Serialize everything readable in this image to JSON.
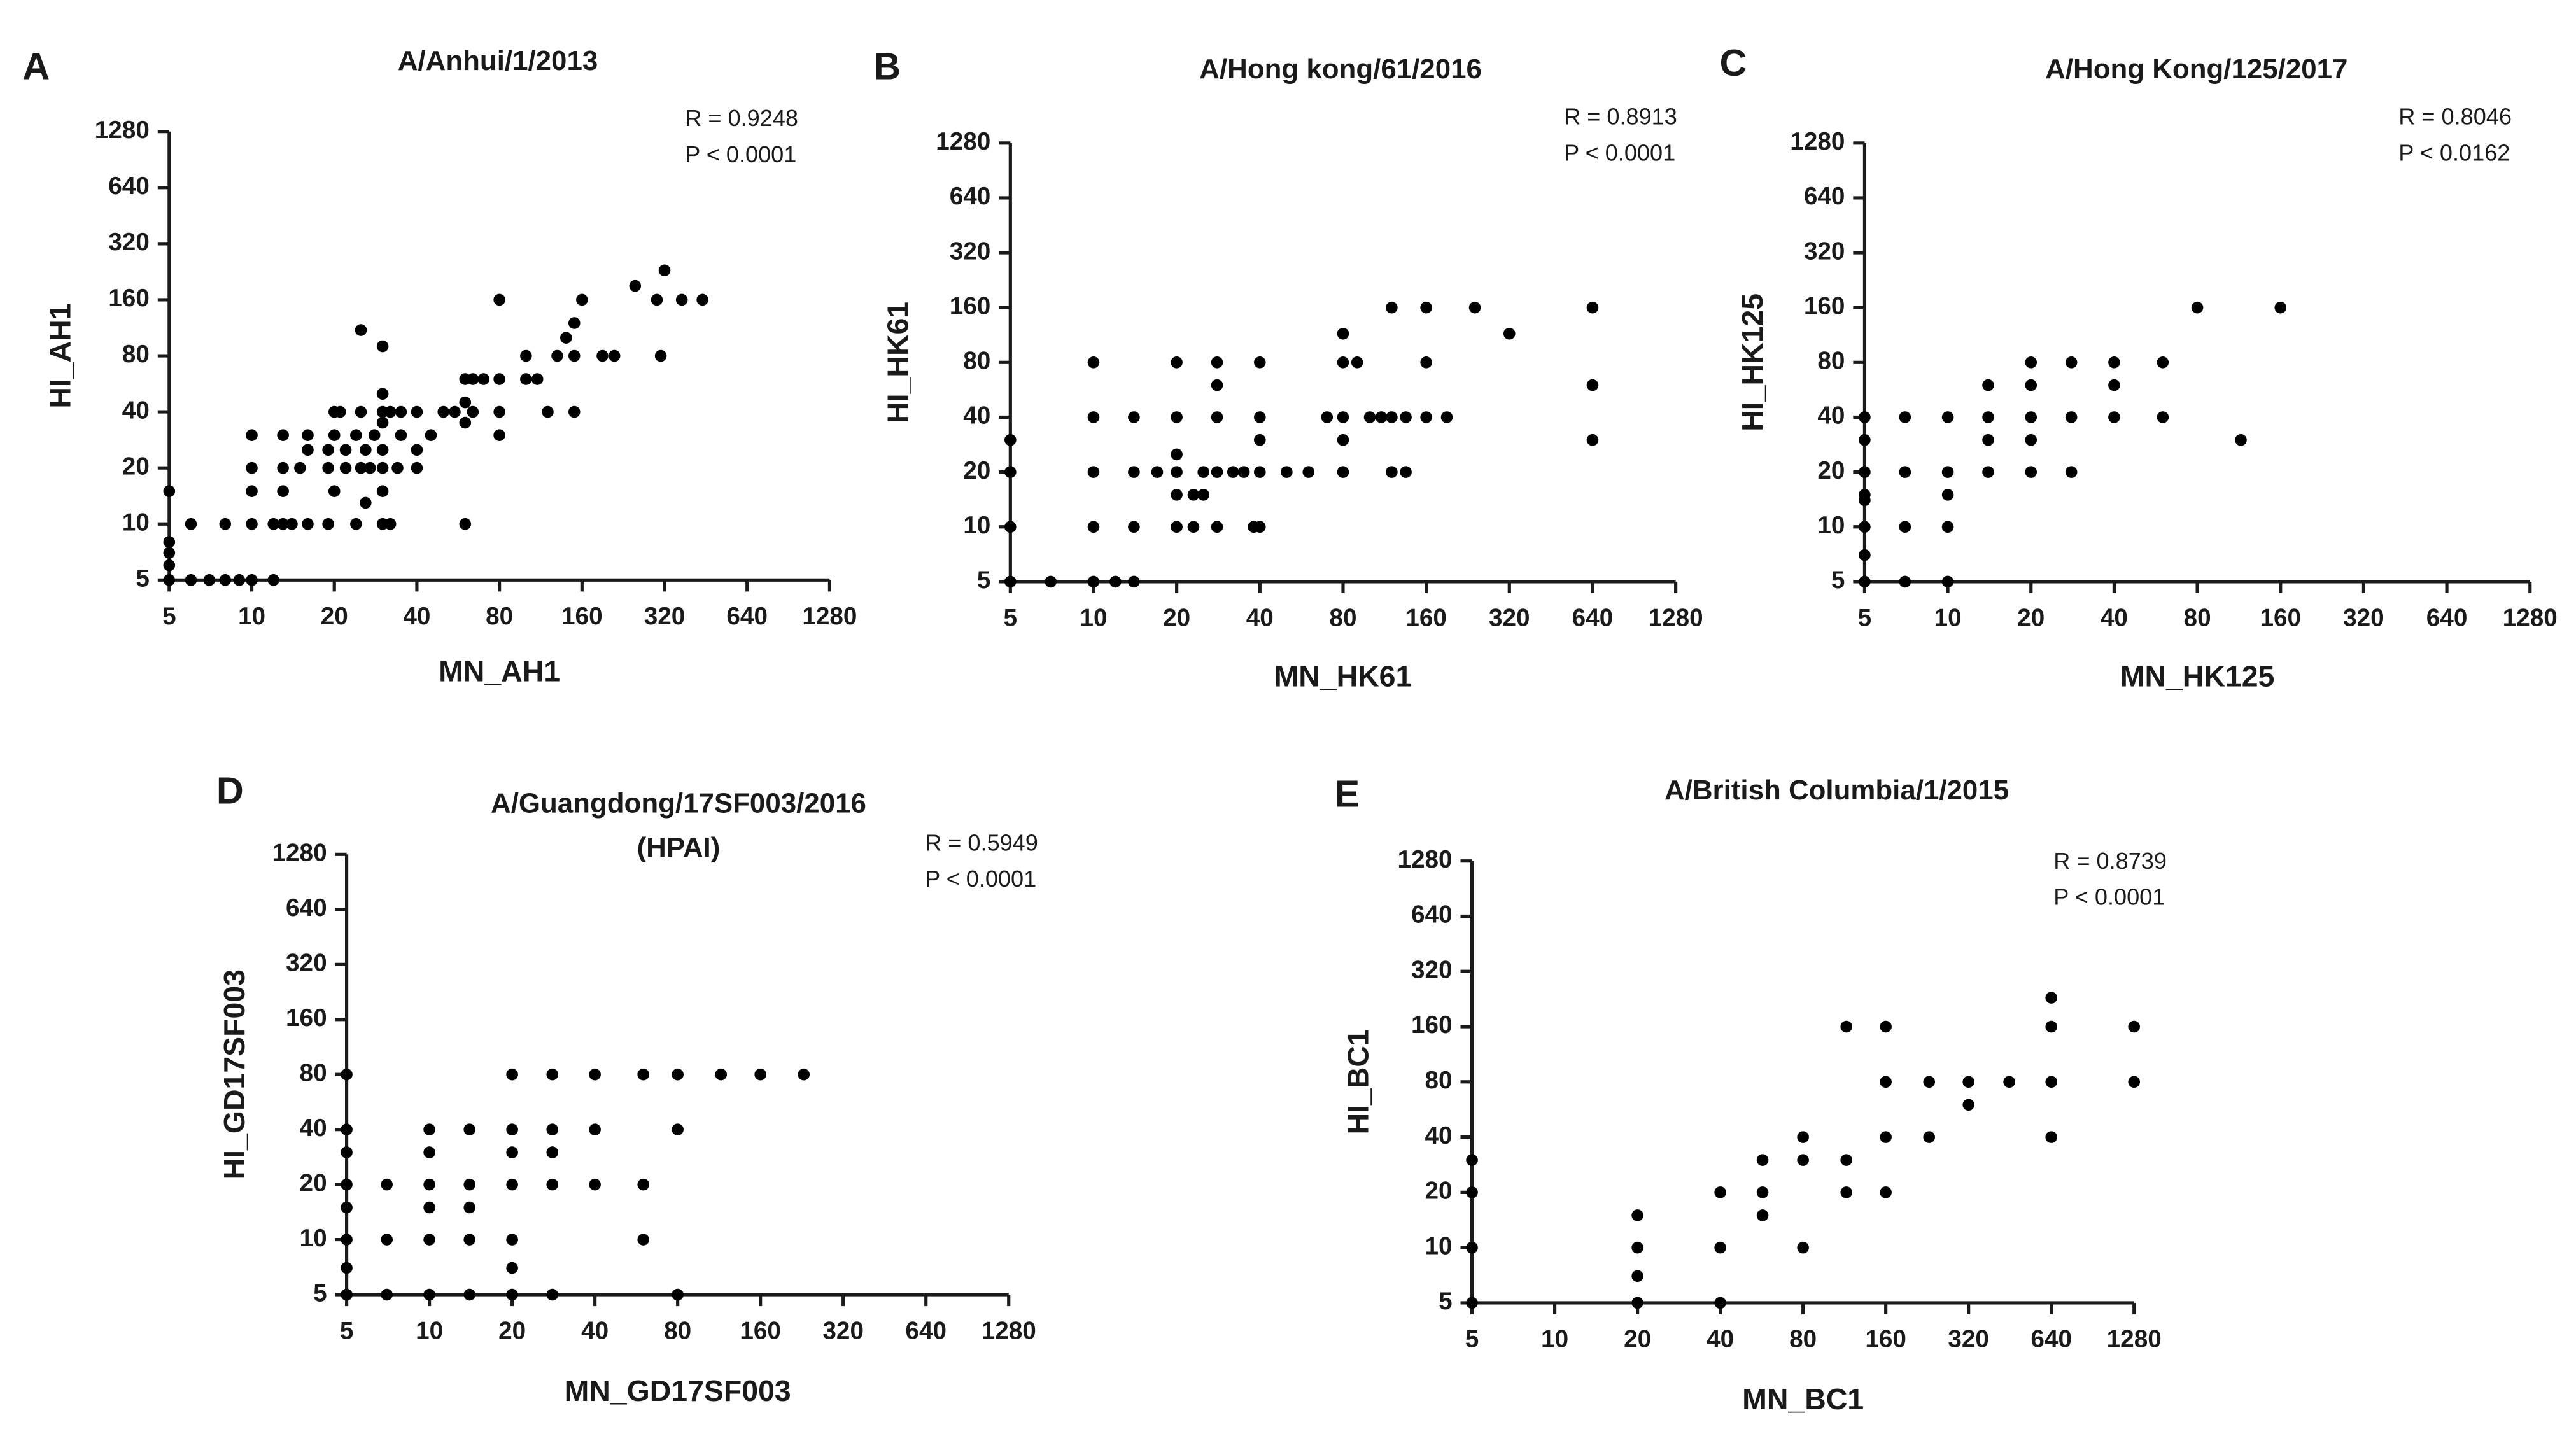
{
  "chart_data": [
    {
      "type": "scatter",
      "panel_label": "A",
      "title": "A/Anhui/1/2013",
      "x_label": "MN_AH1",
      "y_label": "HI_AH1",
      "annotations": [
        "R = 0.9248",
        "P < 0.0001"
      ],
      "color": "#000000",
      "xscale": "log",
      "yscale": "log",
      "xlim": [
        5,
        1280
      ],
      "ylim": [
        5,
        1280
      ],
      "xticks": [
        5,
        10,
        20,
        40,
        80,
        160,
        320,
        640,
        1280
      ],
      "yticks": [
        5,
        10,
        20,
        40,
        80,
        160,
        320,
        640,
        1280
      ],
      "x": [
        5,
        5,
        5,
        5,
        5,
        6,
        6,
        7,
        8,
        9,
        10,
        12,
        8,
        10,
        10,
        10,
        10,
        12,
        13,
        14,
        13,
        13,
        13,
        16,
        15,
        16,
        16,
        19,
        19,
        20,
        20,
        20,
        19,
        21,
        22,
        22,
        24,
        24,
        25,
        25,
        25,
        26,
        26,
        27,
        28,
        30,
        30,
        30,
        30,
        30,
        30,
        30,
        30,
        32,
        32,
        34,
        35,
        35,
        40,
        40,
        40,
        45,
        50,
        55,
        60,
        60,
        60,
        60,
        64,
        64,
        70,
        80,
        80,
        80,
        80,
        100,
        100,
        110,
        120,
        130,
        140,
        150,
        150,
        150,
        160,
        190,
        210,
        250,
        310,
        300,
        320,
        370,
        440
      ],
      "y": [
        5,
        6,
        7,
        8,
        15,
        5,
        10,
        5,
        5,
        5,
        5,
        5,
        10,
        10,
        15,
        20,
        30,
        10,
        10,
        10,
        15,
        20,
        30,
        10,
        20,
        25,
        30,
        10,
        20,
        15,
        30,
        40,
        25,
        40,
        25,
        20,
        30,
        10,
        20,
        40,
        110,
        13,
        25,
        20,
        30,
        10,
        15,
        20,
        25,
        35,
        40,
        50,
        90,
        10,
        40,
        20,
        30,
        40,
        20,
        40,
        25,
        30,
        40,
        40,
        35,
        10,
        45,
        60,
        40,
        60,
        60,
        160,
        30,
        40,
        60,
        60,
        80,
        60,
        40,
        80,
        100,
        40,
        80,
        120,
        160,
        80,
        80,
        190,
        80,
        160,
        230,
        160,
        160
      ]
    },
    {
      "type": "scatter",
      "panel_label": "B",
      "title": "A/Hong kong/61/2016",
      "x_label": "MN_HK61",
      "y_label": "HI_HK61",
      "annotations": [
        "R = 0.8913",
        "P < 0.0001"
      ],
      "color": "#000000",
      "xscale": "log",
      "yscale": "log",
      "xlim": [
        5,
        1280
      ],
      "ylim": [
        5,
        1280
      ],
      "xticks": [
        5,
        10,
        20,
        40,
        80,
        160,
        320,
        640,
        1280
      ],
      "yticks": [
        5,
        10,
        20,
        40,
        80,
        160,
        320,
        640,
        1280
      ],
      "x": [
        5,
        5,
        5,
        5,
        7,
        10,
        10,
        10,
        10,
        10,
        12,
        14,
        14,
        14,
        14,
        17,
        20,
        20,
        20,
        20,
        20,
        20,
        23,
        23,
        25,
        25,
        28,
        28,
        28,
        28,
        28,
        32,
        35,
        38,
        40,
        40,
        40,
        40,
        40,
        50,
        60,
        70,
        80,
        80,
        80,
        80,
        80,
        90,
        100,
        110,
        120,
        120,
        120,
        135,
        135,
        160,
        160,
        160,
        190,
        240,
        320,
        640,
        640,
        640
      ],
      "y": [
        5,
        10,
        20,
        30,
        5,
        5,
        10,
        20,
        40,
        80,
        5,
        5,
        10,
        20,
        40,
        20,
        10,
        15,
        20,
        25,
        40,
        80,
        10,
        15,
        15,
        20,
        10,
        20,
        40,
        60,
        80,
        20,
        20,
        10,
        10,
        20,
        30,
        40,
        80,
        20,
        20,
        40,
        20,
        30,
        40,
        80,
        115,
        80,
        40,
        40,
        40,
        20,
        160,
        20,
        40,
        40,
        80,
        160,
        40,
        160,
        115,
        30,
        60,
        160
      ]
    },
    {
      "type": "scatter",
      "panel_label": "C",
      "title": "A/Hong Kong/125/2017",
      "x_label": "MN_HK125",
      "y_label": "HI_HK125",
      "annotations": [
        "R = 0.8046",
        "P < 0.0162"
      ],
      "color": "#000000",
      "xscale": "log",
      "yscale": "log",
      "xlim": [
        5,
        1280
      ],
      "ylim": [
        5,
        1280
      ],
      "xticks": [
        5,
        10,
        20,
        40,
        80,
        160,
        320,
        640,
        1280
      ],
      "yticks": [
        5,
        10,
        20,
        40,
        80,
        160,
        320,
        640,
        1280
      ],
      "x": [
        5,
        5,
        5,
        5,
        5,
        5,
        5,
        5,
        7,
        7,
        7,
        7,
        10,
        10,
        10,
        10,
        10,
        14,
        14,
        14,
        14,
        20,
        20,
        20,
        20,
        20,
        28,
        28,
        28,
        40,
        40,
        40,
        60,
        60,
        80,
        115,
        160
      ],
      "y": [
        5,
        7,
        10,
        14,
        15,
        20,
        30,
        40,
        5,
        10,
        20,
        40,
        5,
        10,
        15,
        20,
        40,
        20,
        30,
        40,
        60,
        20,
        30,
        40,
        60,
        80,
        20,
        40,
        80,
        40,
        60,
        80,
        40,
        80,
        160,
        30,
        160
      ]
    },
    {
      "type": "scatter",
      "panel_label": "D",
      "title": "A/Guangdong/17SF003/2016",
      "subtitle": "(HPAI)",
      "x_label": "MN_GD17SF003",
      "y_label": "HI_GD17SF003",
      "annotations": [
        "R = 0.5949",
        "P < 0.0001"
      ],
      "color": "#000000",
      "xscale": "log",
      "yscale": "log",
      "xlim": [
        5,
        1280
      ],
      "ylim": [
        5,
        1280
      ],
      "xticks": [
        5,
        10,
        20,
        40,
        80,
        160,
        320,
        640,
        1280
      ],
      "yticks": [
        5,
        10,
        20,
        40,
        80,
        160,
        320,
        640,
        1280
      ],
      "x": [
        5,
        5,
        5,
        5,
        5,
        5,
        5,
        5,
        7,
        7,
        7,
        10,
        10,
        10,
        10,
        10,
        10,
        14,
        14,
        14,
        14,
        14,
        20,
        20,
        20,
        20,
        20,
        20,
        20,
        28,
        28,
        28,
        28,
        28,
        40,
        40,
        40,
        60,
        60,
        60,
        80,
        80,
        80,
        115,
        160,
        230
      ],
      "y": [
        5,
        7,
        10,
        15,
        20,
        30,
        40,
        80,
        5,
        10,
        20,
        5,
        10,
        15,
        20,
        30,
        40,
        5,
        10,
        15,
        20,
        40,
        5,
        7,
        10,
        20,
        30,
        40,
        80,
        5,
        20,
        30,
        40,
        80,
        20,
        40,
        80,
        10,
        20,
        80,
        5,
        40,
        80,
        80,
        80,
        80
      ]
    },
    {
      "type": "scatter",
      "panel_label": "E",
      "title": "A/British Columbia/1/2015",
      "x_label": "MN_BC1",
      "y_label": "HI_BC1",
      "annotations": [
        "R = 0.8739",
        "P < 0.0001"
      ],
      "color": "#000000",
      "xscale": "log",
      "yscale": "log",
      "xlim": [
        5,
        1280
      ],
      "ylim": [
        5,
        1280
      ],
      "xticks": [
        5,
        10,
        20,
        40,
        80,
        160,
        320,
        640,
        1280
      ],
      "yticks": [
        5,
        10,
        20,
        40,
        80,
        160,
        320,
        640,
        1280
      ],
      "x": [
        5,
        5,
        5,
        5,
        20,
        20,
        20,
        20,
        40,
        40,
        40,
        57,
        57,
        57,
        80,
        80,
        80,
        115,
        115,
        115,
        160,
        160,
        160,
        160,
        230,
        230,
        320,
        320,
        450,
        640,
        640,
        640,
        640,
        1280,
        1280
      ],
      "y": [
        5,
        10,
        20,
        30,
        5,
        7,
        10,
        15,
        5,
        10,
        20,
        15,
        20,
        30,
        10,
        30,
        40,
        20,
        30,
        160,
        20,
        40,
        80,
        160,
        40,
        80,
        60,
        80,
        80,
        40,
        80,
        160,
        230,
        80,
        160
      ]
    }
  ]
}
